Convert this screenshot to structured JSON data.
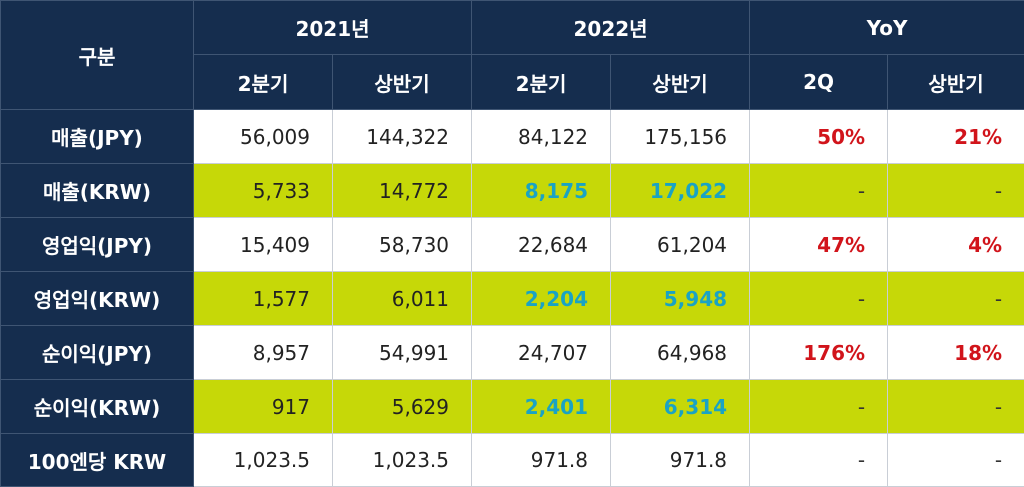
{
  "header": {
    "category": "구분",
    "years": [
      "2021년",
      "2022년",
      "YoY"
    ],
    "sub": [
      "2분기",
      "상반기",
      "2분기",
      "상반기",
      "2Q",
      "상반기"
    ]
  },
  "rows": [
    {
      "label": "매출(JPY)",
      "values": [
        "56,009",
        "144,322",
        "84,122",
        "175,156",
        "50%",
        "21%"
      ]
    },
    {
      "label": "매출(KRW)",
      "values": [
        "5,733",
        "14,772",
        "8,175",
        "17,022",
        "-",
        "-"
      ]
    },
    {
      "label": "영업익(JPY)",
      "values": [
        "15,409",
        "58,730",
        "22,684",
        "61,204",
        "47%",
        "4%"
      ]
    },
    {
      "label": "영업익(KRW)",
      "values": [
        "1,577",
        "6,011",
        "2,204",
        "5,948",
        "-",
        "-"
      ]
    },
    {
      "label": "순이익(JPY)",
      "values": [
        "8,957",
        "54,991",
        "24,707",
        "64,968",
        "176%",
        "18%"
      ]
    },
    {
      "label": "순이익(KRW)",
      "values": [
        "917",
        "5,629",
        "2,401",
        "6,314",
        "-",
        "-"
      ]
    },
    {
      "label": "100엔당 KRW",
      "values": [
        "1,023.5",
        "1,023.5",
        "971.8",
        "971.8",
        "-",
        "-"
      ]
    }
  ],
  "colors": {
    "header_bg": "#152d4e",
    "highlight_row": "#c6d808",
    "teal_value": "#1aa3c4",
    "red_value": "#d1141b"
  }
}
